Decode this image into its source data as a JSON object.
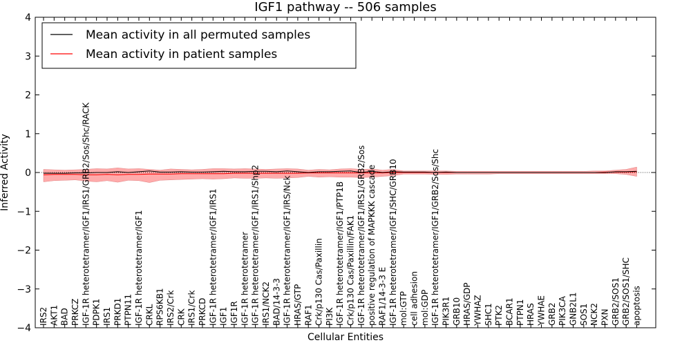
{
  "chart_data": {
    "type": "line",
    "title": "IGF1 pathway -- 506 samples",
    "xlabel": "Cellular Entities",
    "ylabel": "Inferred Activity",
    "ylim": [
      -4,
      4
    ],
    "yticks": [
      -4,
      -3,
      -2,
      -1,
      0,
      1,
      2,
      3,
      4
    ],
    "ytick_labels": [
      "−4",
      "−3",
      "−2",
      "−1",
      "0",
      "1",
      "2",
      "3",
      "4"
    ],
    "legend_position": "top-left",
    "categories": [
      "IRS2",
      "AKT1",
      "BAD",
      "PRKCZ",
      "IGF-1R heterotetramer/IGF1/IRS1/GRB2/Sos/Shc/RACK",
      "PDPK1",
      "IRS1",
      "PRKD1",
      "PTPN11",
      "IGF-1R heterotetramer/IGF1",
      "CRKL",
      "RPS6KB1",
      "IRS2/Crk",
      "CRK",
      "IRS1/Crk",
      "PRKCD",
      "IGF-1R heterotetramer/IGF1/IRS1",
      "IGF1",
      "IGF1R",
      "IGF-1R heterotetramer",
      "IGF-1R heterotetramer/IGF1/IRS1/Shp2",
      "IRS1/NCK2",
      "BAD/14-3-3",
      "IGF-1R heterotetramer/IGF1/IRS/Nck",
      "HRAS/GTP",
      "RAF1",
      "Crk/p130 Cas/Paxillin",
      "PI3K",
      "IGF-1R heterotetramer/IGF1/PTP1B",
      "Crk/p130 Cas/Paxillin/FAK1",
      "IGF-1R heterotetramer/IGF1/IRS1/GRB2/Sos",
      "positive regulation of MAPKKK cascade",
      "RAF1/14-3-3 E",
      "IGF-1R heterotetramer/IGF1/SHC/GRB10",
      "mol:GTP",
      "cell adhesion",
      "mol:GDP",
      "IGF-1R heterotetramer/IGF1/GRB2/Sos/Shc",
      "PIK3R1",
      "GRB10",
      "HRAS/GDP",
      "YWHAZ",
      "SHC1",
      "PTK2",
      "BCAR1",
      "PTPN1",
      "HRAS",
      "YWHAE",
      "GRB2",
      "PIK3CA",
      "GNB2L1",
      "SOS1",
      "NCK2",
      "PXN",
      "GRB2/SOS1",
      "GRB2/SOS1/SHC",
      "apoptosis"
    ],
    "series": [
      {
        "name": "Mean activity in all permuted samples",
        "color": "#000000",
        "values": [
          -0.02,
          -0.02,
          -0.02,
          -0.01,
          -0.01,
          0.0,
          0.0,
          0.02,
          0.0,
          0.02,
          0.04,
          0.01,
          0.01,
          0.02,
          0.01,
          0.01,
          0.02,
          0.03,
          0.02,
          0.02,
          0.03,
          0.03,
          0.02,
          0.04,
          0.02,
          0.0,
          0.02,
          0.02,
          0.03,
          0.04,
          0.0,
          0.03,
          0.0,
          0.02,
          0.01,
          0.01,
          0.01,
          0.0,
          0.01,
          0.0,
          0.0,
          0.0,
          0.0,
          0.0,
          0.0,
          0.0,
          0.0,
          0.0,
          0.0,
          0.0,
          0.0,
          0.0,
          0.0,
          0.0,
          0.02,
          0.02,
          0.03
        ]
      },
      {
        "name": "Mean activity in patient samples",
        "color": "#ff0000",
        "values": [
          -0.06,
          -0.05,
          -0.05,
          -0.05,
          -0.06,
          -0.06,
          -0.05,
          -0.06,
          -0.05,
          -0.05,
          -0.04,
          -0.04,
          -0.04,
          -0.03,
          -0.03,
          -0.03,
          -0.03,
          -0.03,
          -0.02,
          -0.02,
          -0.02,
          -0.02,
          -0.02,
          -0.02,
          -0.02,
          -0.01,
          -0.01,
          -0.01,
          -0.01,
          -0.01,
          -0.01,
          -0.01,
          -0.01,
          0.0,
          0.0,
          0.0,
          0.0,
          0.0,
          0.0,
          0.0,
          0.0,
          0.0,
          0.0,
          0.0,
          0.0,
          0.0,
          0.0,
          0.0,
          0.0,
          0.0,
          0.0,
          0.0,
          0.0,
          0.01,
          0.01,
          0.01,
          0.02
        ]
      }
    ],
    "band": {
      "name": "patient spread",
      "color": "#ff6666",
      "upper": [
        0.08,
        0.07,
        0.06,
        0.07,
        0.08,
        0.1,
        0.09,
        0.12,
        0.09,
        0.1,
        0.08,
        0.06,
        0.09,
        0.08,
        0.07,
        0.08,
        0.1,
        0.1,
        0.09,
        0.1,
        0.09,
        0.08,
        0.09,
        0.1,
        0.09,
        0.06,
        0.08,
        0.07,
        0.09,
        0.1,
        0.08,
        0.09,
        0.06,
        0.08,
        0.04,
        0.04,
        0.04,
        0.04,
        0.04,
        0.03,
        0.03,
        0.03,
        0.03,
        0.03,
        0.03,
        0.03,
        0.03,
        0.03,
        0.03,
        0.03,
        0.03,
        0.03,
        0.04,
        0.04,
        0.06,
        0.08,
        0.14
      ],
      "lower": [
        -0.24,
        -0.21,
        -0.2,
        -0.19,
        -0.22,
        -0.24,
        -0.21,
        -0.25,
        -0.2,
        -0.21,
        -0.26,
        -0.2,
        -0.19,
        -0.18,
        -0.17,
        -0.16,
        -0.17,
        -0.16,
        -0.14,
        -0.15,
        -0.15,
        -0.14,
        -0.15,
        -0.14,
        -0.13,
        -0.1,
        -0.12,
        -0.11,
        -0.12,
        -0.12,
        -0.13,
        -0.12,
        -0.1,
        -0.08,
        -0.04,
        -0.04,
        -0.04,
        -0.05,
        -0.05,
        -0.04,
        -0.04,
        -0.04,
        -0.04,
        -0.03,
        -0.03,
        -0.03,
        -0.03,
        -0.03,
        -0.03,
        -0.03,
        -0.03,
        -0.03,
        -0.03,
        -0.03,
        -0.03,
        -0.05,
        -0.1
      ]
    },
    "reference_line": 0,
    "grid": false
  }
}
